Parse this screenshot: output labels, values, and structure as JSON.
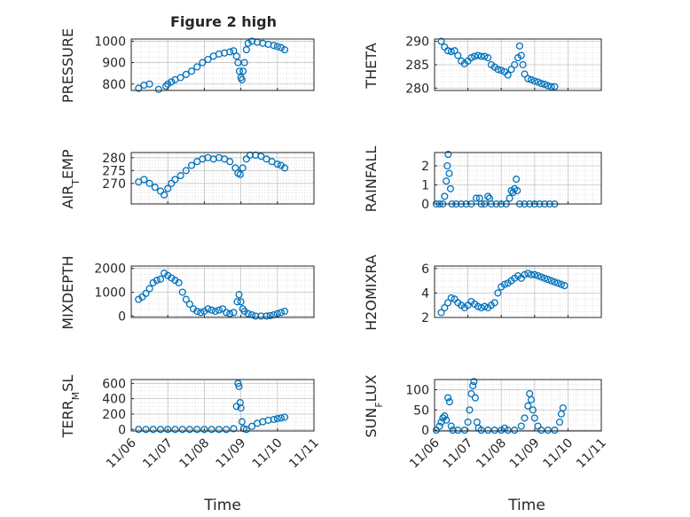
{
  "title": "Figure 2 high",
  "x_axis_label": "Time",
  "x_tick_labels": [
    "11/06",
    "11/07",
    "11/08",
    "11/09",
    "11/10",
    "11/11"
  ],
  "marker_color": "#0072bd",
  "chart_data": [
    {
      "type": "scatter",
      "marker": "open-circle",
      "grid": true,
      "ylabel": "PRESSURE",
      "ylim": [
        770,
        1010
      ],
      "yticks": [
        800,
        900,
        1000
      ],
      "xlabel": "",
      "xlim": [
        "11/06 00:00",
        "11/11 00:00"
      ],
      "points": [
        [
          0.2,
          780
        ],
        [
          0.35,
          795
        ],
        [
          0.5,
          800
        ],
        [
          0.75,
          775
        ],
        [
          0.95,
          790
        ],
        [
          1.0,
          800
        ],
        [
          1.1,
          810
        ],
        [
          1.2,
          820
        ],
        [
          1.35,
          830
        ],
        [
          1.5,
          845
        ],
        [
          1.65,
          860
        ],
        [
          1.8,
          880
        ],
        [
          1.95,
          900
        ],
        [
          2.1,
          915
        ],
        [
          2.25,
          930
        ],
        [
          2.4,
          940
        ],
        [
          2.55,
          945
        ],
        [
          2.7,
          950
        ],
        [
          2.8,
          955
        ],
        [
          2.88,
          930
        ],
        [
          2.92,
          900
        ],
        [
          2.96,
          860
        ],
        [
          3.0,
          830
        ],
        [
          3.03,
          820
        ],
        [
          3.06,
          860
        ],
        [
          3.1,
          900
        ],
        [
          3.15,
          960
        ],
        [
          3.2,
          990
        ],
        [
          3.3,
          1000
        ],
        [
          3.45,
          995
        ],
        [
          3.6,
          990
        ],
        [
          3.75,
          985
        ],
        [
          3.9,
          980
        ],
        [
          4.0,
          975
        ],
        [
          4.1,
          970
        ],
        [
          4.2,
          960
        ]
      ]
    },
    {
      "type": "scatter",
      "marker": "open-circle",
      "grid": true,
      "ylabel": "THETA",
      "ylim": [
        279.5,
        290.5
      ],
      "yticks": [
        280,
        285,
        290
      ],
      "xlabel": "",
      "xlim": [
        "11/06 00:00",
        "11/11 00:00"
      ],
      "points": [
        [
          0.2,
          290.0
        ],
        [
          0.3,
          288.8
        ],
        [
          0.4,
          288.0
        ],
        [
          0.5,
          287.8
        ],
        [
          0.6,
          288.0
        ],
        [
          0.7,
          287.0
        ],
        [
          0.8,
          285.8
        ],
        [
          0.9,
          285.2
        ],
        [
          1.0,
          285.8
        ],
        [
          1.1,
          286.5
        ],
        [
          1.2,
          286.8
        ],
        [
          1.3,
          287.0
        ],
        [
          1.4,
          286.8
        ],
        [
          1.5,
          286.8
        ],
        [
          1.6,
          286.5
        ],
        [
          1.7,
          285.0
        ],
        [
          1.8,
          284.5
        ],
        [
          1.9,
          284.0
        ],
        [
          2.0,
          283.8
        ],
        [
          2.1,
          283.5
        ],
        [
          2.2,
          282.8
        ],
        [
          2.3,
          284.0
        ],
        [
          2.4,
          285.0
        ],
        [
          2.5,
          286.5
        ],
        [
          2.55,
          289.0
        ],
        [
          2.6,
          287.0
        ],
        [
          2.65,
          285.0
        ],
        [
          2.7,
          283.0
        ],
        [
          2.8,
          282.0
        ],
        [
          2.9,
          281.8
        ],
        [
          3.0,
          281.5
        ],
        [
          3.1,
          281.3
        ],
        [
          3.2,
          281.0
        ],
        [
          3.3,
          280.8
        ],
        [
          3.4,
          280.5
        ],
        [
          3.5,
          280.3
        ],
        [
          3.6,
          280.3
        ]
      ]
    },
    {
      "type": "scatter",
      "marker": "open-circle",
      "grid": true,
      "ylabel": "AIR_TEMP",
      "ylim": [
        262,
        282
      ],
      "yticks": [
        270,
        275,
        280
      ],
      "xlabel": "",
      "xlim": [
        "11/06 00:00",
        "11/11 00:00"
      ],
      "points": [
        [
          0.2,
          270.5
        ],
        [
          0.35,
          271.5
        ],
        [
          0.5,
          270.0
        ],
        [
          0.65,
          268.5
        ],
        [
          0.8,
          267.0
        ],
        [
          0.9,
          265.5
        ],
        [
          1.0,
          268.0
        ],
        [
          1.1,
          270.0
        ],
        [
          1.2,
          271.5
        ],
        [
          1.35,
          273.0
        ],
        [
          1.5,
          275.0
        ],
        [
          1.65,
          277.0
        ],
        [
          1.8,
          278.5
        ],
        [
          1.95,
          279.5
        ],
        [
          2.1,
          280.0
        ],
        [
          2.25,
          279.5
        ],
        [
          2.4,
          280.0
        ],
        [
          2.55,
          279.5
        ],
        [
          2.7,
          278.5
        ],
        [
          2.85,
          276.0
        ],
        [
          2.92,
          274.0
        ],
        [
          2.98,
          273.5
        ],
        [
          3.05,
          276.0
        ],
        [
          3.15,
          279.5
        ],
        [
          3.25,
          281.0
        ],
        [
          3.4,
          281.0
        ],
        [
          3.55,
          280.5
        ],
        [
          3.7,
          279.5
        ],
        [
          3.85,
          278.5
        ],
        [
          4.0,
          277.5
        ],
        [
          4.1,
          277.0
        ],
        [
          4.2,
          276.0
        ]
      ]
    },
    {
      "type": "scatter",
      "marker": "open-circle",
      "grid": true,
      "ylabel": "RAINFALL",
      "ylim": [
        0,
        2.7
      ],
      "yticks": [
        0,
        1,
        2
      ],
      "xlabel": "",
      "xlim": [
        "11/06 00:00",
        "11/11 00:00"
      ],
      "points": [
        [
          0.05,
          0
        ],
        [
          0.15,
          0
        ],
        [
          0.25,
          0
        ],
        [
          0.3,
          0.4
        ],
        [
          0.35,
          1.2
        ],
        [
          0.38,
          2.0
        ],
        [
          0.41,
          2.6
        ],
        [
          0.44,
          1.6
        ],
        [
          0.48,
          0.8
        ],
        [
          0.52,
          0
        ],
        [
          0.65,
          0
        ],
        [
          0.8,
          0
        ],
        [
          0.95,
          0
        ],
        [
          1.1,
          0
        ],
        [
          1.25,
          0.3
        ],
        [
          1.35,
          0.3
        ],
        [
          1.4,
          0
        ],
        [
          1.5,
          0
        ],
        [
          1.6,
          0.4
        ],
        [
          1.65,
          0.3
        ],
        [
          1.7,
          0
        ],
        [
          1.85,
          0
        ],
        [
          2.0,
          0
        ],
        [
          2.15,
          0
        ],
        [
          2.25,
          0.3
        ],
        [
          2.3,
          0.7
        ],
        [
          2.35,
          0.6
        ],
        [
          2.4,
          0.8
        ],
        [
          2.45,
          1.3
        ],
        [
          2.48,
          0.7
        ],
        [
          2.55,
          0
        ],
        [
          2.7,
          0
        ],
        [
          2.85,
          0
        ],
        [
          3.0,
          0
        ],
        [
          3.15,
          0
        ],
        [
          3.3,
          0
        ],
        [
          3.45,
          0
        ],
        [
          3.6,
          0
        ]
      ]
    },
    {
      "type": "scatter",
      "marker": "open-circle",
      "grid": true,
      "ylabel": "MIXDEPTH",
      "ylim": [
        -60,
        2100
      ],
      "yticks": [
        0,
        1000,
        2000
      ],
      "xlabel": "",
      "xlim": [
        "11/06 00:00",
        "11/11 00:00"
      ],
      "points": [
        [
          0.2,
          700
        ],
        [
          0.3,
          800
        ],
        [
          0.4,
          950
        ],
        [
          0.5,
          1150
        ],
        [
          0.6,
          1400
        ],
        [
          0.7,
          1500
        ],
        [
          0.8,
          1550
        ],
        [
          0.9,
          1800
        ],
        [
          1.0,
          1700
        ],
        [
          1.1,
          1600
        ],
        [
          1.2,
          1500
        ],
        [
          1.3,
          1400
        ],
        [
          1.4,
          1000
        ],
        [
          1.5,
          700
        ],
        [
          1.6,
          500
        ],
        [
          1.7,
          300
        ],
        [
          1.8,
          200
        ],
        [
          1.9,
          150
        ],
        [
          2.0,
          200
        ],
        [
          2.1,
          300
        ],
        [
          2.2,
          250
        ],
        [
          2.3,
          200
        ],
        [
          2.4,
          250
        ],
        [
          2.5,
          300
        ],
        [
          2.6,
          150
        ],
        [
          2.7,
          100
        ],
        [
          2.8,
          150
        ],
        [
          2.9,
          600
        ],
        [
          2.95,
          900
        ],
        [
          3.0,
          600
        ],
        [
          3.05,
          300
        ],
        [
          3.1,
          200
        ],
        [
          3.2,
          100
        ],
        [
          3.3,
          50
        ],
        [
          3.4,
          0
        ],
        [
          3.55,
          0
        ],
        [
          3.7,
          0
        ],
        [
          3.8,
          20
        ],
        [
          3.9,
          50
        ],
        [
          4.0,
          100
        ],
        [
          4.1,
          150
        ],
        [
          4.2,
          200
        ]
      ]
    },
    {
      "type": "scatter",
      "marker": "open-circle",
      "grid": true,
      "ylabel": "H2OMIXRA",
      "ylim": [
        2,
        6.2
      ],
      "yticks": [
        2,
        4,
        6
      ],
      "xlabel": "",
      "xlim": [
        "11/06 00:00",
        "11/11 00:00"
      ],
      "points": [
        [
          0.2,
          2.4
        ],
        [
          0.3,
          2.8
        ],
        [
          0.4,
          3.2
        ],
        [
          0.5,
          3.6
        ],
        [
          0.6,
          3.5
        ],
        [
          0.7,
          3.2
        ],
        [
          0.8,
          3.0
        ],
        [
          0.9,
          2.8
        ],
        [
          1.0,
          3.0
        ],
        [
          1.1,
          3.3
        ],
        [
          1.2,
          3.1
        ],
        [
          1.3,
          2.9
        ],
        [
          1.4,
          2.8
        ],
        [
          1.5,
          2.9
        ],
        [
          1.6,
          2.8
        ],
        [
          1.7,
          3.0
        ],
        [
          1.8,
          3.2
        ],
        [
          1.9,
          4.0
        ],
        [
          2.0,
          4.5
        ],
        [
          2.1,
          4.7
        ],
        [
          2.2,
          4.8
        ],
        [
          2.3,
          5.0
        ],
        [
          2.4,
          5.2
        ],
        [
          2.5,
          5.4
        ],
        [
          2.6,
          5.2
        ],
        [
          2.7,
          5.5
        ],
        [
          2.8,
          5.6
        ],
        [
          2.9,
          5.5
        ],
        [
          3.0,
          5.5
        ],
        [
          3.1,
          5.4
        ],
        [
          3.2,
          5.3
        ],
        [
          3.3,
          5.2
        ],
        [
          3.4,
          5.1
        ],
        [
          3.5,
          5.0
        ],
        [
          3.6,
          4.9
        ],
        [
          3.7,
          4.8
        ],
        [
          3.8,
          4.7
        ],
        [
          3.9,
          4.6
        ]
      ]
    },
    {
      "type": "scatter",
      "marker": "open-circle",
      "grid": true,
      "ylabel": "TERR_MSL",
      "ylim": [
        -20,
        650
      ],
      "yticks": [
        0,
        200,
        400,
        600
      ],
      "xlabel": "Time",
      "xlim": [
        "11/06 00:00",
        "11/11 00:00"
      ],
      "points": [
        [
          0.2,
          0
        ],
        [
          0.4,
          0
        ],
        [
          0.6,
          0
        ],
        [
          0.8,
          0
        ],
        [
          1.0,
          0
        ],
        [
          1.2,
          0
        ],
        [
          1.4,
          0
        ],
        [
          1.6,
          0
        ],
        [
          1.8,
          0
        ],
        [
          2.0,
          0
        ],
        [
          2.2,
          0
        ],
        [
          2.4,
          0
        ],
        [
          2.6,
          0
        ],
        [
          2.8,
          10
        ],
        [
          2.88,
          300
        ],
        [
          2.92,
          600
        ],
        [
          2.95,
          560
        ],
        [
          2.98,
          350
        ],
        [
          3.0,
          280
        ],
        [
          3.03,
          100
        ],
        [
          3.08,
          10
        ],
        [
          3.15,
          0
        ],
        [
          3.3,
          40
        ],
        [
          3.45,
          80
        ],
        [
          3.6,
          100
        ],
        [
          3.75,
          120
        ],
        [
          3.9,
          130
        ],
        [
          4.0,
          140
        ],
        [
          4.1,
          150
        ],
        [
          4.2,
          160
        ]
      ]
    },
    {
      "type": "scatter",
      "marker": "open-circle",
      "grid": true,
      "ylabel": "SUN_FLUX",
      "ylim": [
        -2,
        125
      ],
      "yticks": [
        0,
        50,
        100
      ],
      "xlabel": "Time",
      "xlim": [
        "11/06 00:00",
        "11/11 00:00"
      ],
      "points": [
        [
          0.05,
          0
        ],
        [
          0.15,
          10
        ],
        [
          0.2,
          20
        ],
        [
          0.25,
          30
        ],
        [
          0.3,
          35
        ],
        [
          0.35,
          25
        ],
        [
          0.4,
          80
        ],
        [
          0.45,
          70
        ],
        [
          0.5,
          10
        ],
        [
          0.55,
          0
        ],
        [
          0.7,
          0
        ],
        [
          0.9,
          0
        ],
        [
          1.0,
          20
        ],
        [
          1.05,
          50
        ],
        [
          1.1,
          90
        ],
        [
          1.15,
          110
        ],
        [
          1.18,
          120
        ],
        [
          1.22,
          80
        ],
        [
          1.27,
          20
        ],
        [
          1.32,
          5
        ],
        [
          1.4,
          0
        ],
        [
          1.6,
          0
        ],
        [
          1.8,
          0
        ],
        [
          2.0,
          0
        ],
        [
          2.1,
          5
        ],
        [
          2.2,
          0
        ],
        [
          2.4,
          0
        ],
        [
          2.6,
          10
        ],
        [
          2.7,
          30
        ],
        [
          2.8,
          60
        ],
        [
          2.85,
          90
        ],
        [
          2.9,
          75
        ],
        [
          2.95,
          50
        ],
        [
          3.0,
          30
        ],
        [
          3.1,
          10
        ],
        [
          3.2,
          0
        ],
        [
          3.4,
          0
        ],
        [
          3.6,
          0
        ],
        [
          3.75,
          20
        ],
        [
          3.8,
          40
        ],
        [
          3.85,
          55
        ]
      ]
    }
  ]
}
